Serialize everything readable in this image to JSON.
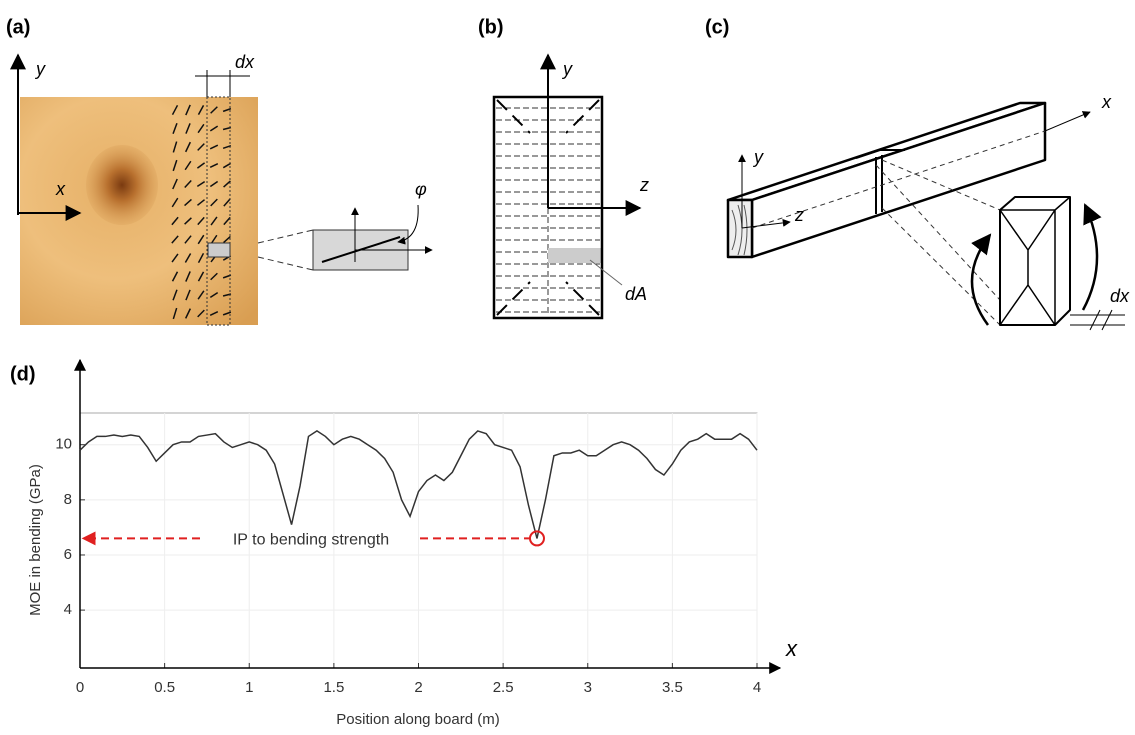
{
  "panels": {
    "a": {
      "label": "(a)",
      "y": "y",
      "x": "x",
      "dx": "dx",
      "phi": "φ"
    },
    "b": {
      "label": "(b)",
      "y": "y",
      "z": "z",
      "dA": "dA"
    },
    "c": {
      "label": "(c)",
      "x": "x",
      "y": "y",
      "z": "z",
      "dx": "dx"
    }
  },
  "chart_data": {
    "type": "line",
    "panel_label": "(d)",
    "x_label": "Position along board (m)",
    "y_label": "MOE in bending (GPa)",
    "axis_symbol": "x",
    "annotation": "IP to bending strength",
    "highlight": {
      "x": 2.7,
      "y": 6.6
    },
    "color": "#333333",
    "grid": true,
    "xlim": [
      0,
      4
    ],
    "ylim": [
      1.9,
      11.15
    ],
    "xticks": [
      0,
      0.5,
      1,
      1.5,
      2,
      2.5,
      3,
      3.5,
      4
    ],
    "yticks": [
      4,
      6,
      8,
      10
    ],
    "x": [
      0,
      0.05,
      0.1,
      0.15,
      0.2,
      0.25,
      0.3,
      0.35,
      0.4,
      0.45,
      0.5,
      0.55,
      0.6,
      0.65,
      0.7,
      0.75,
      0.8,
      0.85,
      0.9,
      0.95,
      1,
      1.05,
      1.1,
      1.15,
      1.2,
      1.25,
      1.3,
      1.35,
      1.4,
      1.45,
      1.5,
      1.55,
      1.6,
      1.65,
      1.7,
      1.75,
      1.8,
      1.85,
      1.9,
      1.95,
      2,
      2.05,
      2.1,
      2.15,
      2.2,
      2.25,
      2.3,
      2.35,
      2.4,
      2.45,
      2.5,
      2.55,
      2.6,
      2.65,
      2.7,
      2.75,
      2.8,
      2.85,
      2.9,
      2.95,
      3,
      3.05,
      3.1,
      3.15,
      3.2,
      3.25,
      3.3,
      3.35,
      3.4,
      3.45,
      3.5,
      3.55,
      3.6,
      3.65,
      3.7,
      3.75,
      3.8,
      3.85,
      3.9,
      3.95,
      4
    ],
    "values": [
      9.8,
      10.1,
      10.3,
      10.3,
      10.35,
      10.3,
      10.35,
      10.3,
      9.9,
      9.4,
      9.7,
      10.0,
      10.1,
      10.1,
      10.3,
      10.35,
      10.4,
      10.1,
      9.9,
      10.0,
      10.1,
      10.0,
      9.8,
      9.3,
      8.2,
      7.1,
      8.5,
      10.3,
      10.5,
      10.3,
      10.0,
      10.2,
      10.3,
      10.2,
      10.0,
      9.8,
      9.5,
      9.0,
      8.0,
      7.4,
      8.3,
      8.7,
      8.9,
      8.7,
      9.0,
      9.6,
      10.2,
      10.5,
      10.4,
      10.0,
      9.9,
      9.8,
      9.2,
      7.8,
      6.6,
      8.0,
      9.6,
      9.7,
      9.7,
      9.8,
      9.6,
      9.6,
      9.8,
      10.0,
      10.1,
      10.0,
      9.8,
      9.5,
      9.1,
      8.9,
      9.3,
      9.8,
      10.1,
      10.2,
      10.4,
      10.2,
      10.2,
      10.2,
      10.4,
      10.2,
      9.8
    ]
  }
}
